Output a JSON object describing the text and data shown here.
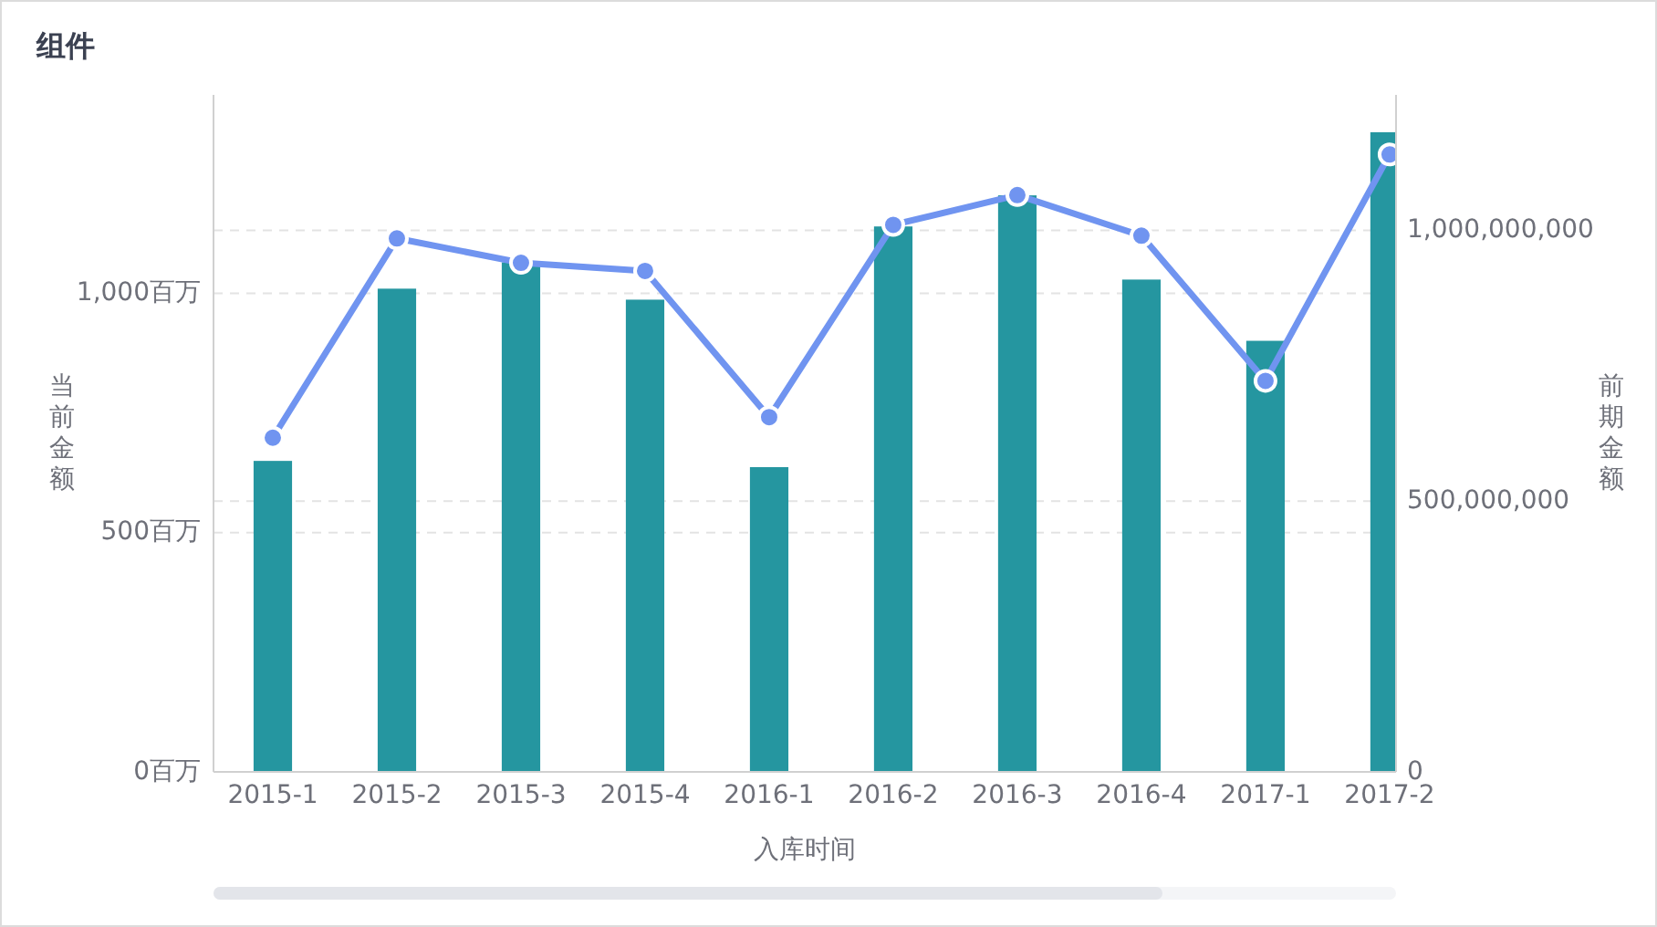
{
  "chart_data": {
    "type": "bar",
    "title": "组件",
    "xlabel": "入库时间",
    "ylabel": "当前金额",
    "y2label": "前期金额",
    "categories": [
      "2015-1",
      "2015-2",
      "2015-3",
      "2015-4",
      "2016-1",
      "2016-2",
      "2016-3",
      "2016-4",
      "2017-1",
      "2017-2"
    ],
    "series": [
      {
        "color": "#2596a0",
        "values": [
          650,
          1010,
          1065,
          987,
          637,
          1140,
          1205,
          1029,
          901,
          1337
        ]
      },
      {
        "type": "line",
        "axis": "y2",
        "color": "#7094f0",
        "values": [
          617000000,
          985000000,
          940000000,
          925000000,
          655000000,
          1010000000,
          1065000000,
          990000000,
          722000000,
          1140000000
        ]
      }
    ],
    "ylim": [
      0,
      1415
    ],
    "yticks": [
      {
        "value": 0,
        "label": "0百万"
      },
      {
        "value": 500,
        "label": "500百万"
      },
      {
        "value": 1000,
        "label": "1,000百万"
      }
    ],
    "y2lim": [
      0,
      1250000000
    ],
    "y2ticks": [
      0,
      {
        "value": 500000000,
        "label": "500,000,000"
      },
      {
        "value": 1000000000,
        "label": "1,000,000,000"
      }
    ],
    "grid": true,
    "marker": "circle",
    "line_style": "solid"
  }
}
